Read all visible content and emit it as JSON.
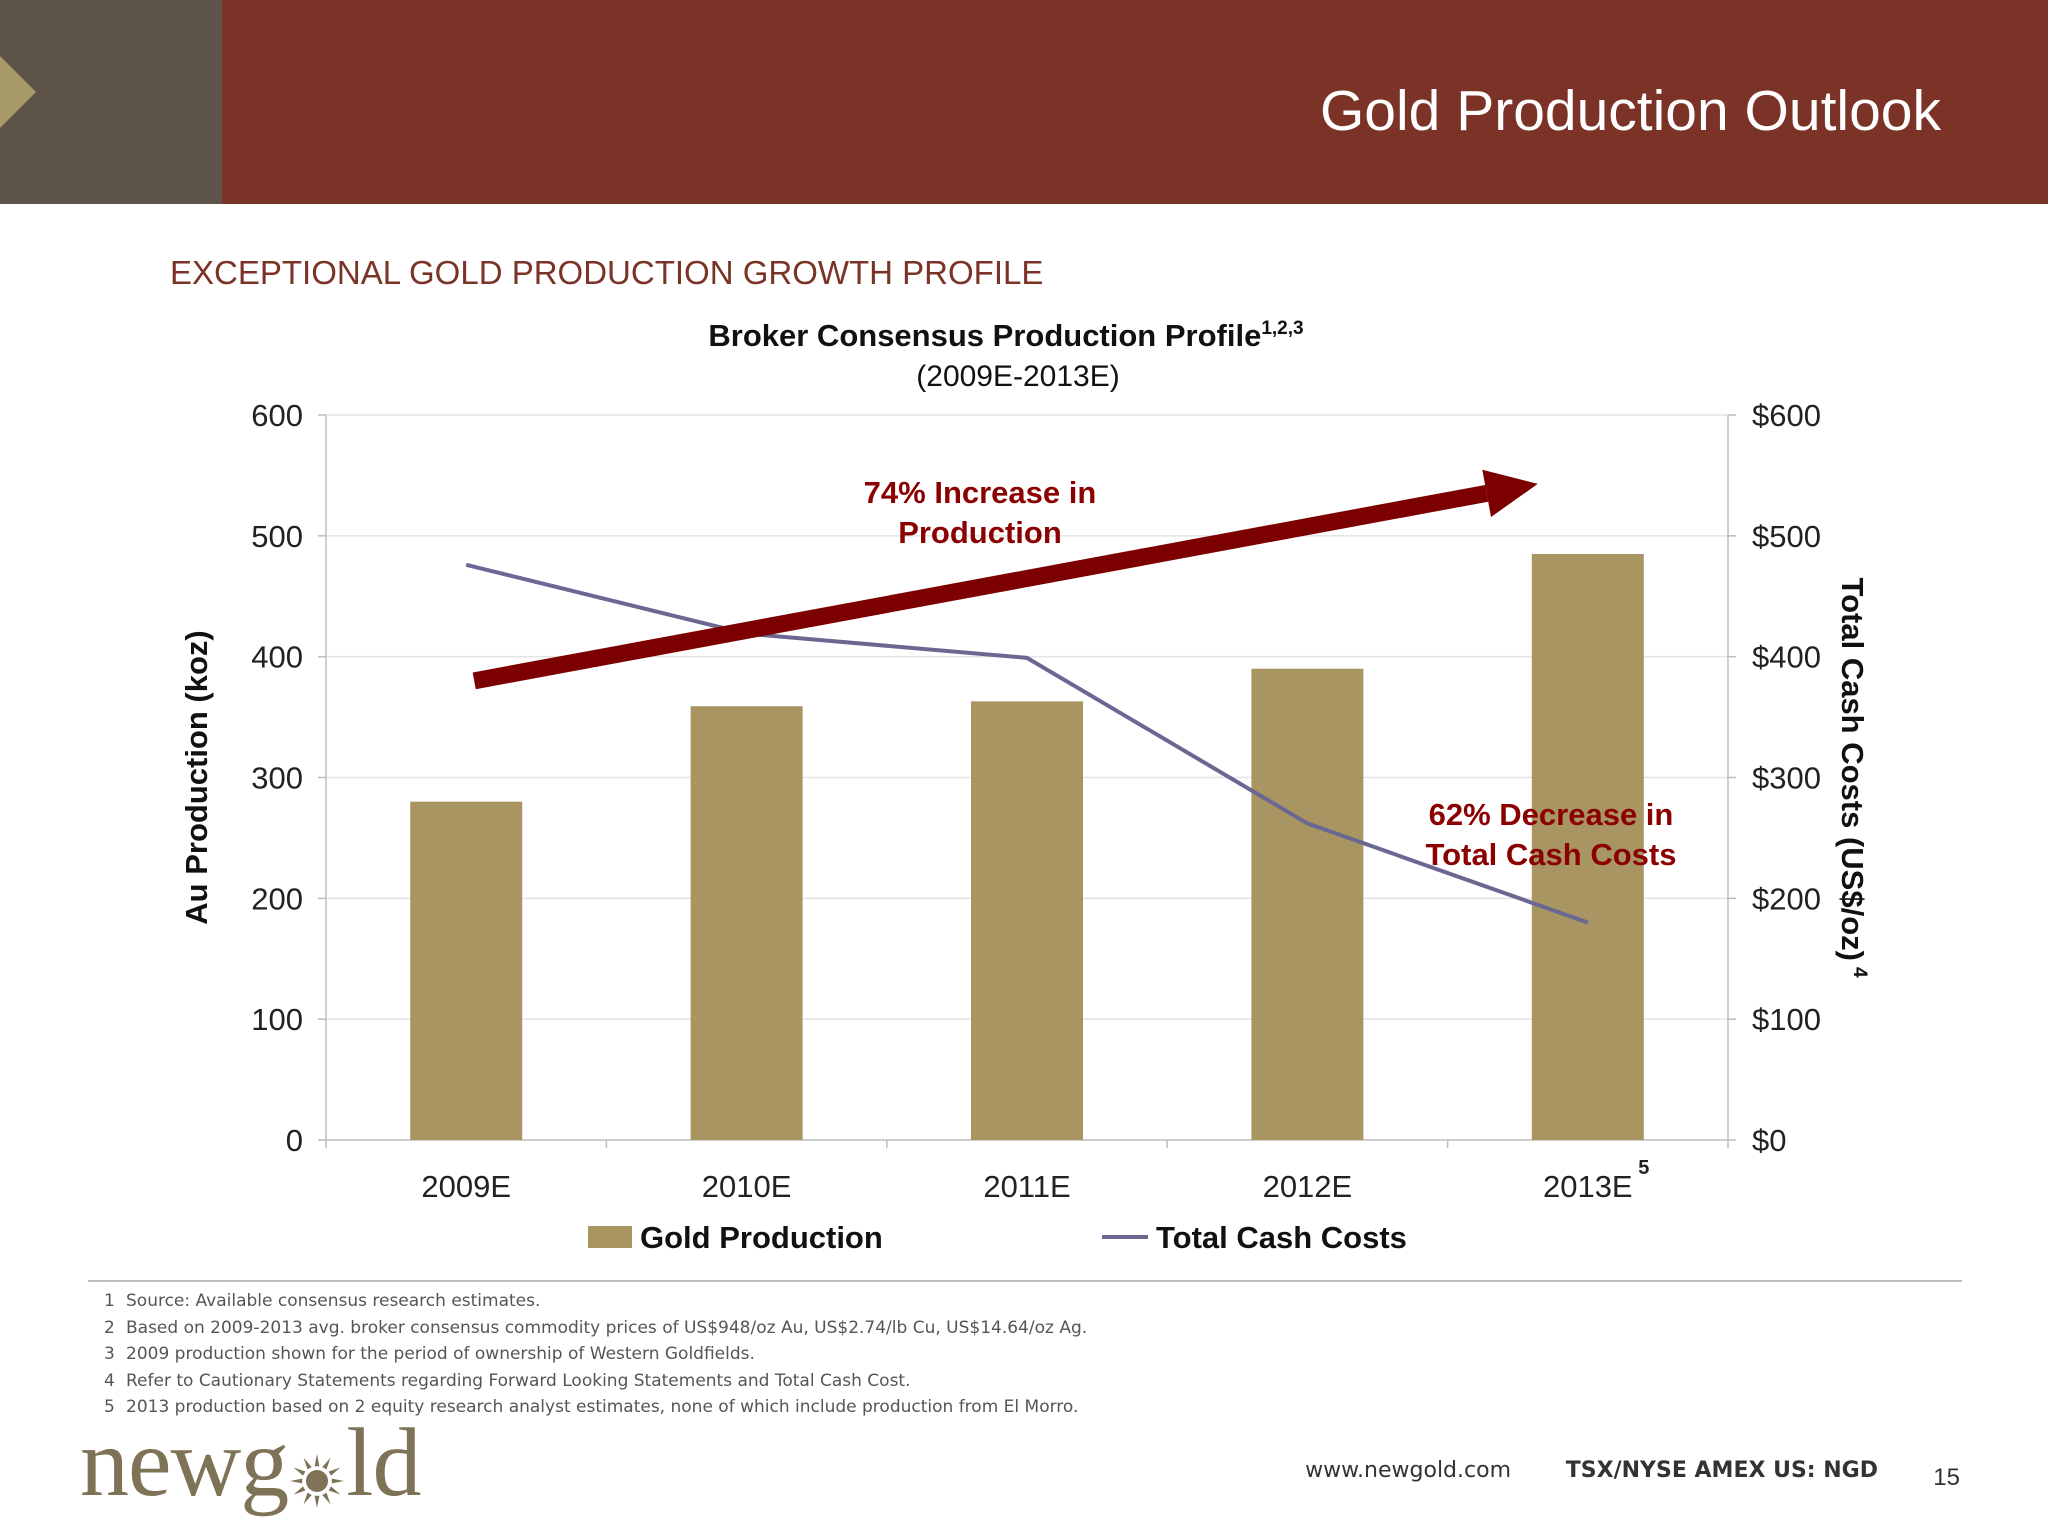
{
  "header": {
    "title": "Gold Production Outlook"
  },
  "section_heading": "EXCEPTIONAL GOLD PRODUCTION GROWTH PROFILE",
  "chart_data": {
    "type": "bar",
    "title": "Broker Consensus Production Profile",
    "title_superscript": "1,2,3",
    "subtitle": "(2009E-2013E)",
    "categories": [
      "2009E",
      "2010E",
      "2011E",
      "2012E",
      "2013E"
    ],
    "category_superscripts": [
      "",
      "",
      "",
      "",
      "5"
    ],
    "series": [
      {
        "name": "Gold Production",
        "type": "bar",
        "axis": "left",
        "values": [
          280,
          359,
          363,
          390,
          485
        ],
        "color": "#a89561"
      },
      {
        "name": "Total Cash Costs",
        "type": "line",
        "axis": "right",
        "values": [
          476,
          419,
          399,
          262,
          180
        ],
        "color": "#6a6792"
      }
    ],
    "ylabel": "Au Production (koz)",
    "ylim": [
      0,
      600
    ],
    "yticks": [
      "0",
      "100",
      "200",
      "300",
      "400",
      "500",
      "600"
    ],
    "y2label": "Total Cash Costs (US$/oz)",
    "y2label_superscript": "4",
    "y2lim": [
      0,
      600
    ],
    "y2ticks": [
      "$0",
      "$100",
      "$200",
      "$300",
      "$400",
      "$500",
      "$600"
    ],
    "grid": true,
    "legend": "bottom-center",
    "annotations": [
      {
        "text": "74% Increase in",
        "text2": "Production",
        "color": "#8b0000"
      },
      {
        "text": "62% Decrease in",
        "text2": "Total Cash Costs",
        "color": "#8b0000"
      }
    ],
    "trend_arrow": {
      "start": [
        "2009E",
        380
      ],
      "end": [
        "2013E",
        543
      ],
      "color": "#7d0000"
    }
  },
  "footnotes": [
    {
      "num": "1",
      "text": "Source: Available consensus research estimates."
    },
    {
      "num": "2",
      "text": "Based on 2009-2013 avg. broker consensus commodity prices of US$948/oz Au, US$2.74/lb Cu, US$14.64/oz Ag."
    },
    {
      "num": "3",
      "text": "2009 production shown for the period of ownership of Western Goldfields."
    },
    {
      "num": "4",
      "text": "Refer to Cautionary Statements regarding Forward Looking Statements and Total Cash Cost."
    },
    {
      "num": "5",
      "text": "2013 production based on 2 equity research analyst estimates, none of which include production from El Morro."
    }
  ],
  "footer": {
    "logo_text_left": "newg",
    "logo_text_right": "ld",
    "url": "www.newgold.com",
    "ticker": "TSX/NYSE AMEX US: NGD",
    "page_number": "15"
  },
  "icons": {
    "logo_sun": "sun-icon",
    "header_marker": "triangle-icon"
  }
}
